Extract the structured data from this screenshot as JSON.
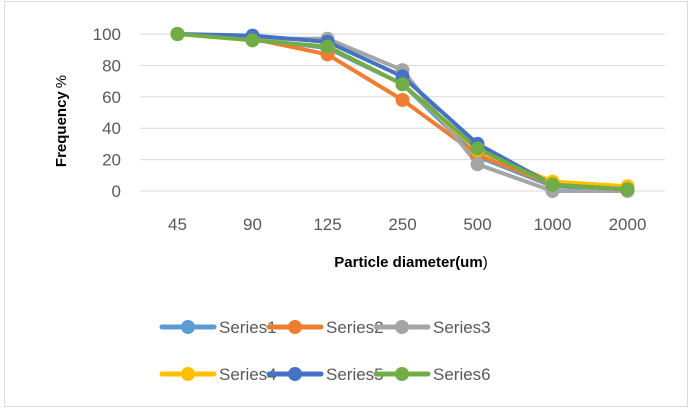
{
  "chart_data": {
    "type": "line",
    "categories": [
      "45",
      "90",
      "125",
      "250",
      "500",
      "1000",
      "2000"
    ],
    "series": [
      {
        "name": "Series1",
        "color": "#5b9bd5",
        "values": [
          100,
          97,
          91,
          68,
          22,
          3,
          1
        ]
      },
      {
        "name": "Series2",
        "color": "#ed7d31",
        "values": [
          100,
          97,
          87,
          58,
          23,
          4,
          2
        ]
      },
      {
        "name": "Series3",
        "color": "#a5a5a5",
        "values": [
          100,
          97,
          97,
          77,
          17,
          0,
          0
        ]
      },
      {
        "name": "Series4",
        "color": "#ffc000",
        "values": [
          100,
          96,
          92,
          68,
          26,
          6,
          3
        ]
      },
      {
        "name": "Series5",
        "color": "#4472c4",
        "values": [
          100,
          99,
          95,
          73,
          30,
          4,
          1
        ]
      },
      {
        "name": "Series6",
        "color": "#70ad47",
        "values": [
          100,
          96,
          92,
          68,
          27,
          4,
          1
        ]
      }
    ],
    "xlabel": "Particle diameter(um",
    "xlabel_suffix": ")",
    "ylabel": "Frequency",
    "ylabel_suffix": "%",
    "ylim": [
      0,
      100
    ],
    "yticks": [
      "0",
      "20",
      "40",
      "60",
      "80",
      "100"
    ],
    "grid": true,
    "legend": "bottom"
  }
}
